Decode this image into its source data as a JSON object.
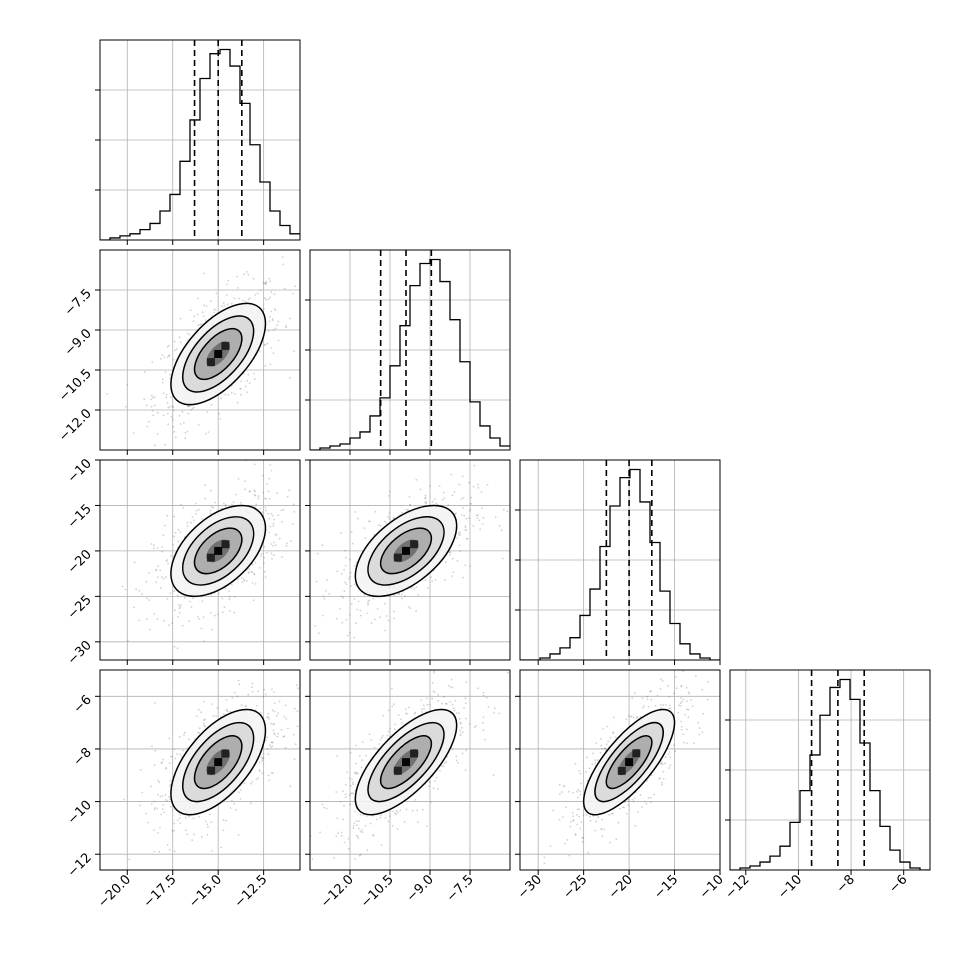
{
  "chart_data": {
    "type": "corner",
    "title": "",
    "grid": true,
    "parameters": [
      {
        "index": 0,
        "range": [
          -21.5,
          -10.5
        ],
        "ticks": [
          "−20.0",
          "−17.5",
          "−15.0",
          "−12.5"
        ],
        "tick_values": [
          -20.0,
          -17.5,
          -15.0,
          -12.5
        ],
        "quantiles": [
          -16.3,
          -15.0,
          -13.7
        ],
        "sd": 1.3
      },
      {
        "index": 1,
        "range": [
          -13.5,
          -6.0
        ],
        "ticks": [
          "−12.0",
          "−10.5",
          "−9.0",
          "−7.5"
        ],
        "tick_values": [
          -12.0,
          -10.5,
          -9.0,
          -7.5
        ],
        "quantiles": [
          -10.85,
          -9.9,
          -8.95
        ],
        "sd": 0.95
      },
      {
        "index": 2,
        "range": [
          -32.0,
          -10.0
        ],
        "ticks": [
          "−30",
          "−25",
          "−20",
          "−15",
          "−10"
        ],
        "tick_values": [
          -30,
          -25,
          -20,
          -15,
          -10
        ],
        "quantiles": [
          -22.5,
          -20.0,
          -17.5
        ],
        "sd": 2.5
      },
      {
        "index": 3,
        "range": [
          -12.6,
          -5.0
        ],
        "ticks": [
          "−12",
          "−10",
          "−8",
          "−6"
        ],
        "tick_values": [
          -12,
          -10,
          -8,
          -6
        ],
        "quantiles": [
          -9.5,
          -8.5,
          -7.5
        ],
        "sd": 1.0
      }
    ],
    "correlations": [
      [
        1.0,
        0.6,
        0.5,
        0.6
      ],
      [
        0.6,
        1.0,
        0.55,
        0.7
      ],
      [
        0.5,
        0.55,
        1.0,
        0.75
      ],
      [
        0.6,
        0.7,
        0.75,
        1.0
      ]
    ],
    "histograms": [
      {
        "param": 0,
        "bin_start": -21.5,
        "bin_width": 0.55,
        "counts": [
          0,
          1,
          2,
          3,
          5,
          8,
          14,
          22,
          38,
          58,
          78,
          90,
          92,
          84,
          66,
          46,
          28,
          14,
          7,
          3
        ]
      },
      {
        "param": 1,
        "bin_start": -13.5,
        "bin_width": 0.375,
        "counts": [
          0,
          1,
          2,
          3,
          6,
          9,
          17,
          26,
          42,
          62,
          82,
          93,
          95,
          84,
          65,
          44,
          24,
          12,
          6,
          2
        ]
      },
      {
        "param": 2,
        "bin_start": -32.0,
        "bin_width": 1.1,
        "counts": [
          0,
          0,
          1,
          3,
          6,
          11,
          22,
          35,
          56,
          76,
          90,
          94,
          78,
          58,
          34,
          18,
          8,
          3,
          1,
          0
        ]
      },
      {
        "param": 3,
        "bin_start": -12.6,
        "bin_width": 0.38,
        "counts": [
          0,
          1,
          2,
          4,
          7,
          12,
          24,
          40,
          58,
          78,
          92,
          96,
          86,
          64,
          40,
          22,
          10,
          4,
          1,
          0
        ]
      }
    ],
    "contour_levels_sigma": [
      0.5,
      1.0,
      1.5,
      2.0
    ],
    "colors": {
      "line": "#000000",
      "scatter": "#7a7a7a",
      "grid": "#b0b0b0",
      "frame": "#000000"
    }
  }
}
